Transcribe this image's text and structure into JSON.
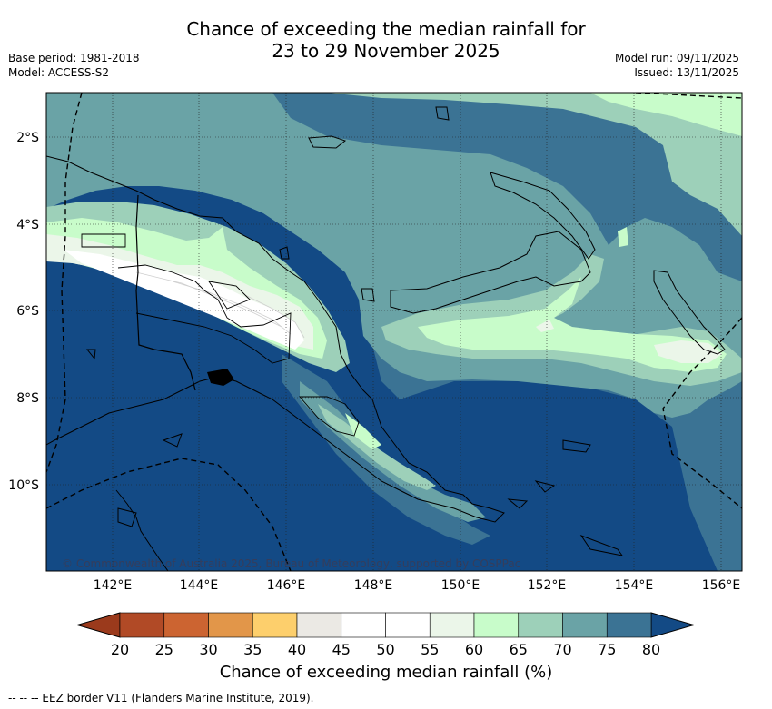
{
  "header": {
    "title_line1": "Chance of exceeding the median rainfall for",
    "title_line2": "23 to 29 November 2025",
    "base_period": "Base period: 1981-2018",
    "model": "Model: ACCESS-S2",
    "model_run": "Model run: 09/11/2025",
    "issued": "Issued: 13/11/2025"
  },
  "map": {
    "lat_labels": [
      "2°S",
      "4°S",
      "6°S",
      "8°S",
      "10°S"
    ],
    "lon_labels": [
      "142°E",
      "144°E",
      "146°E",
      "148°E",
      "150°E",
      "152°E",
      "154°E",
      "156°E"
    ],
    "copyright": "© Commonwealth of Australia 2025, Bureau of Meteorology, supported by COSPPac",
    "colors": {
      "ocean_dark": "#134a85",
      "band_75": "#3b7394",
      "band_70": "#6aa3a6",
      "band_65": "#9dd0b9",
      "band_60": "#c8fcca",
      "band_55": "#ebf6e9",
      "band_50": "#ffffff"
    }
  },
  "colorbar": {
    "ticks": [
      "20",
      "25",
      "30",
      "35",
      "40",
      "45",
      "50",
      "55",
      "60",
      "65",
      "70",
      "75",
      "80"
    ],
    "colors": [
      "#b14a26",
      "#cc6431",
      "#e29649",
      "#fdcf6c",
      "#ebe9e4",
      "#ffffff",
      "#ffffff",
      "#ebf6e9",
      "#c8fcca",
      "#9dd0b9",
      "#6aa3a6",
      "#3b7394"
    ],
    "under_color": "#9b3a1c",
    "over_color": "#134a85",
    "label": "Chance of exceeding median rainfall (%)"
  },
  "footer": {
    "legend_line": "--  --  -- EEZ border V11 (Flanders Marine Institute, 2019)."
  }
}
